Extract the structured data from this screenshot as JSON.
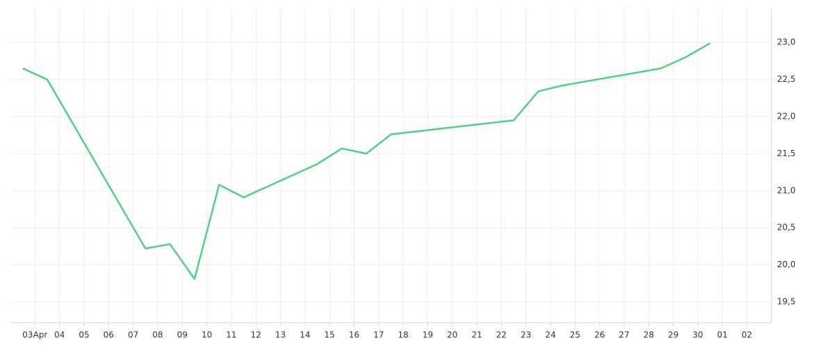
{
  "chart_data": {
    "type": "line",
    "x": [
      2.5,
      3.5,
      7.5,
      8.5,
      9.5,
      10.5,
      11.5,
      14.5,
      15.5,
      16.5,
      17.5,
      22.5,
      23.5,
      24.5,
      28.5,
      29.5,
      30.5
    ],
    "series": [
      {
        "color": "#4fd17f",
        "values": [
          22.65,
          22.5,
          20.22,
          20.28,
          19.81,
          21.08,
          20.91,
          21.36,
          21.57,
          21.5,
          21.76,
          21.95,
          22.34,
          22.42,
          22.65,
          22.8,
          22.99
        ]
      }
    ],
    "xlim": [
      2,
      33
    ],
    "xticks": [
      {
        "value": 3,
        "label": "03Apr"
      },
      {
        "value": 4,
        "label": "04"
      },
      {
        "value": 5,
        "label": "05"
      },
      {
        "value": 6,
        "label": "06"
      },
      {
        "value": 7,
        "label": "07"
      },
      {
        "value": 8,
        "label": "08"
      },
      {
        "value": 9,
        "label": "09"
      },
      10,
      11,
      12,
      13,
      14,
      15,
      16,
      17,
      18,
      19,
      20,
      21,
      22,
      23,
      24,
      25,
      26,
      27,
      28,
      29,
      30,
      {
        "value": 31,
        "label": "01"
      },
      {
        "value": 32,
        "label": "02"
      }
    ],
    "ylim": [
      19.22,
      23.46
    ],
    "yticks": [
      {
        "value": 19.5,
        "label": "19,5"
      },
      {
        "value": 20,
        "label": "20,0"
      },
      {
        "value": 20.5,
        "label": "20,5"
      },
      {
        "value": 21,
        "label": "21,0"
      },
      {
        "value": 21.5,
        "label": "21,5"
      },
      {
        "value": 22,
        "label": "22,0"
      },
      {
        "value": 22.5,
        "label": "22,5"
      },
      {
        "value": 23,
        "label": "23,0"
      }
    ],
    "grid": true
  }
}
